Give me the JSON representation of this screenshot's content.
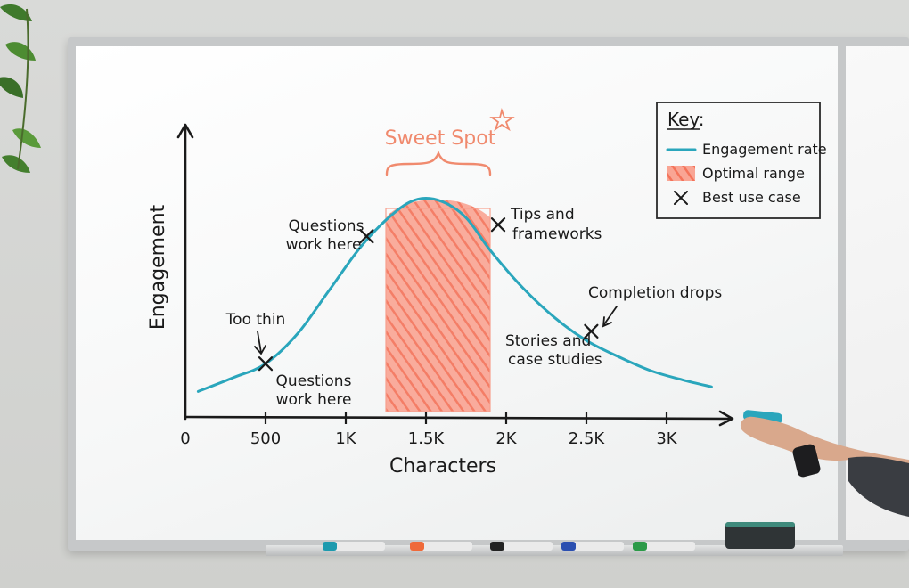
{
  "chart_data": {
    "type": "line",
    "xlabel": "Characters",
    "ylabel": "Engagement",
    "x_ticks": [
      {
        "value": 0,
        "label": "0"
      },
      {
        "value": 500,
        "label": "500"
      },
      {
        "value": 1000,
        "label": "1K"
      },
      {
        "value": 1500,
        "label": "1.5K"
      },
      {
        "value": 2000,
        "label": "2K"
      },
      {
        "value": 2500,
        "label": "2.5K"
      },
      {
        "value": 3000,
        "label": "3K"
      }
    ],
    "xlim": [
      0,
      3400
    ],
    "ylim": [
      0,
      1
    ],
    "series": [
      {
        "name": "Engagement rate",
        "color": "#2aa6bc",
        "x": [
          80,
          300,
          500,
          700,
          900,
          1100,
          1300,
          1450,
          1600,
          1750,
          1900,
          2100,
          2300,
          2500,
          2700,
          2900,
          3100,
          3280
        ],
        "y": [
          0.11,
          0.17,
          0.23,
          0.36,
          0.55,
          0.74,
          0.88,
          0.94,
          0.93,
          0.86,
          0.72,
          0.56,
          0.43,
          0.33,
          0.26,
          0.2,
          0.16,
          0.13
        ]
      }
    ],
    "optimal_range": {
      "name": "Optimal range",
      "color": "#f7826b",
      "x_from": 1250,
      "x_to": 1900
    },
    "best_use_cases": [
      {
        "x": 500,
        "y": 0.23,
        "label": "Questions work here"
      },
      {
        "x": 1130,
        "y": 0.78,
        "label": "Questions work here"
      },
      {
        "x": 1950,
        "y": 0.83,
        "label": "Tips and frameworks"
      },
      {
        "x": 2530,
        "y": 0.37,
        "label": "Stories and case studies"
      }
    ],
    "annotations": [
      "Sweet Spot",
      "Too thin",
      "Completion drops"
    ],
    "legend": {
      "title": "Key:",
      "position": "top-right",
      "items": [
        {
          "label": "Engagement rate",
          "symbol": "line",
          "color": "#2aa6bc"
        },
        {
          "label": "Optimal range",
          "symbol": "rect",
          "color": "#f7826b"
        },
        {
          "label": "Best use case",
          "symbol": "x",
          "color": "#1a1a1a"
        }
      ]
    },
    "grid": false
  },
  "labels": {
    "sweet_spot": "Sweet Spot",
    "too_thin": "Too thin",
    "q_low_1": "Questions",
    "q_low_2": "work here",
    "q_mid_1": "Questions",
    "q_mid_2": "work here",
    "tips_1": "Tips and",
    "tips_2": "frameworks",
    "completion": "Completion drops",
    "stories_1": "Stories and",
    "stories_2": "case studies"
  },
  "colors": {
    "curve": "#2aa6bc",
    "optimal": "#f7826b",
    "ink": "#1a1a1a",
    "sweet_spot_text": "#f08a6e"
  }
}
